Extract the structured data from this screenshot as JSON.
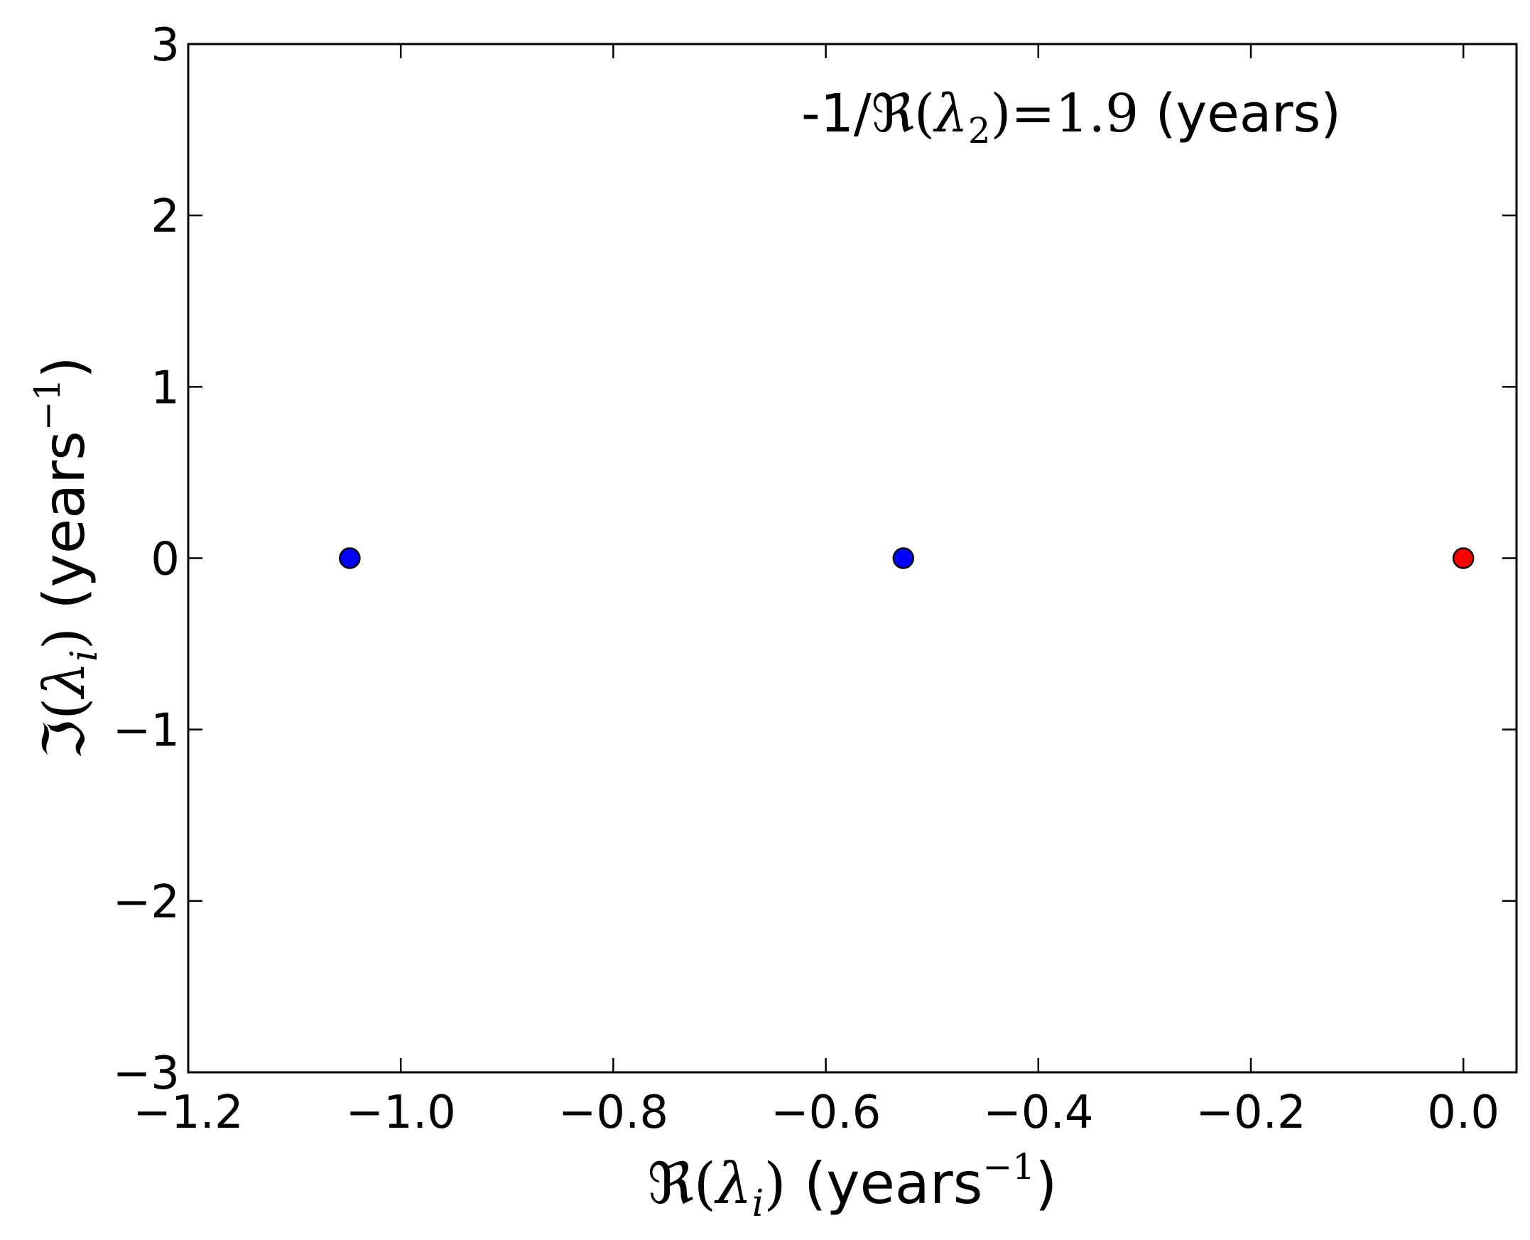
{
  "chart_data": {
    "type": "scatter",
    "title": "",
    "xlabel": {
      "symbol": "ℜ",
      "open": "(",
      "var": "λ",
      "sub": "i",
      "close": ")",
      "unit_open": " (years",
      "sup": "−1",
      "unit_close": ")"
    },
    "ylabel": {
      "symbol": "ℑ",
      "open": "(",
      "var": "λ",
      "sub": "i",
      "close": ")",
      "unit_open": " (years",
      "sup": "−1",
      "unit_close": ")"
    },
    "annotation": {
      "prefix": "-1/",
      "symbol": "ℜ",
      "open": "(",
      "var": "λ",
      "sub": "2",
      "close": ")",
      "eq": "=",
      "value": "1.9",
      "suffix": " (years)",
      "placement": "top-right"
    },
    "xlim": [
      -1.2,
      0.05
    ],
    "ylim": [
      -3,
      3
    ],
    "xticks": [
      -1.2,
      -1.0,
      -0.8,
      -0.6,
      -0.4,
      -0.2,
      0.0
    ],
    "xtick_labels": [
      "−1.2",
      "−1.0",
      "−0.8",
      "−0.6",
      "−0.4",
      "−0.2",
      "0.0"
    ],
    "yticks": [
      -3,
      -2,
      -1,
      0,
      1,
      2,
      3
    ],
    "ytick_labels": [
      "−3",
      "−2",
      "−1",
      "0",
      "1",
      "2",
      "3"
    ],
    "grid": false,
    "points": [
      {
        "x": -1.048,
        "y": 0,
        "color": "#0000ff"
      },
      {
        "x": -0.527,
        "y": 0,
        "color": "#0000ff"
      },
      {
        "x": 0.0,
        "y": 0,
        "color": "#ff0000"
      }
    ]
  }
}
